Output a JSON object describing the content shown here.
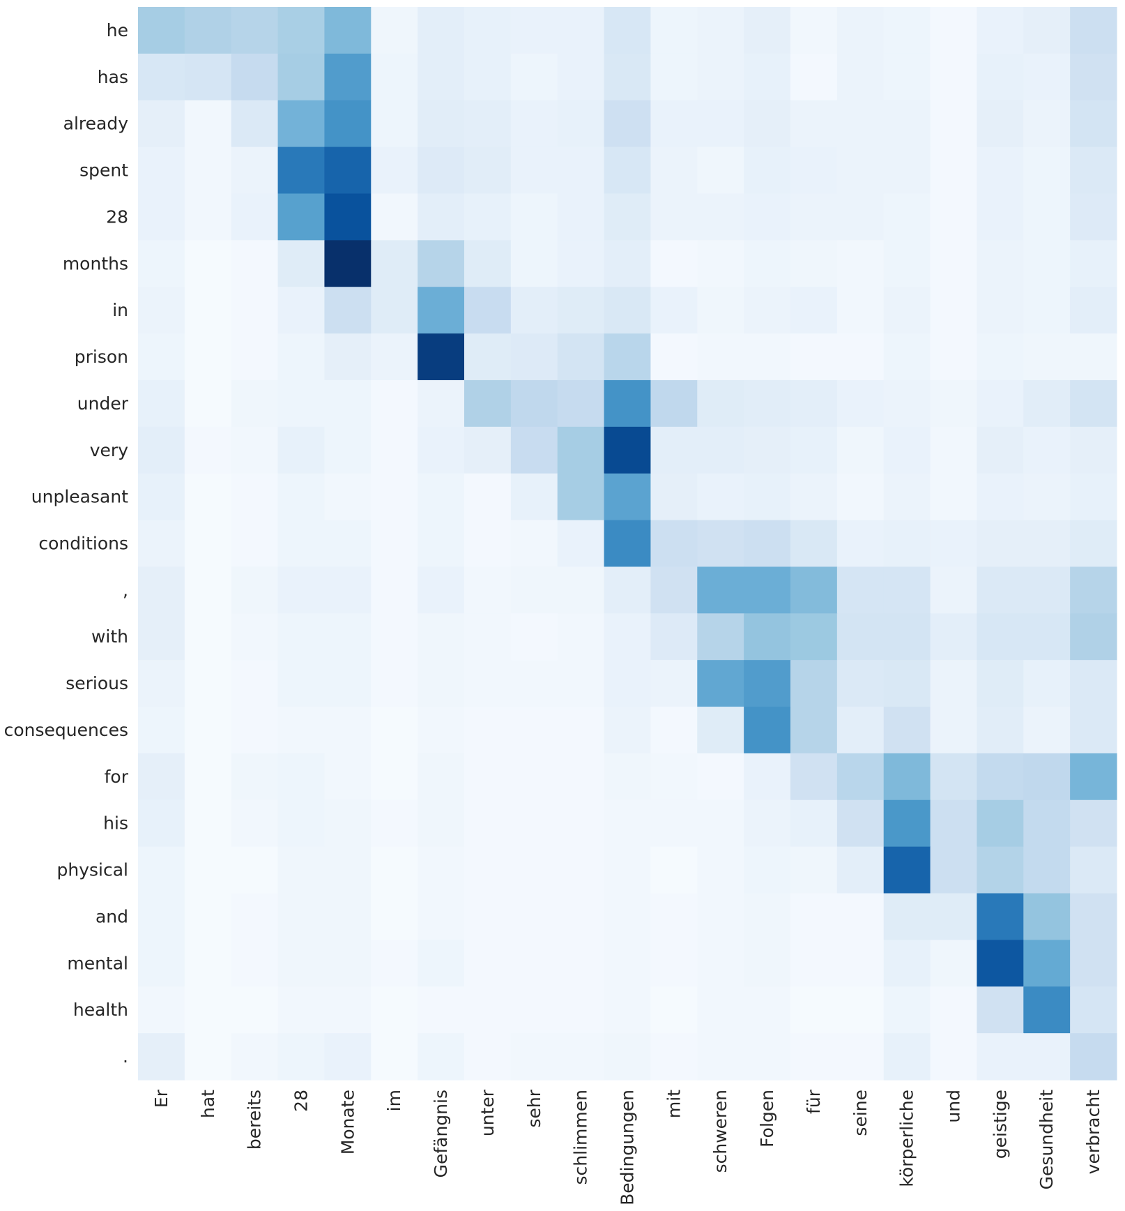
{
  "chart_data": {
    "type": "heatmap",
    "title": "",
    "xlabel": "",
    "ylabel": "",
    "colormap": "Blues",
    "value_range": [
      0,
      1
    ],
    "x_categories": [
      "Er",
      "hat",
      "bereits",
      "28",
      "Monate",
      "im",
      "Gefängnis",
      "unter",
      "sehr",
      "schlimmen",
      "Bedingungen",
      "mit",
      "schweren",
      "Folgen",
      "für",
      "seine",
      "körperliche",
      "und",
      "geistige",
      "Gesundheit",
      "verbracht"
    ],
    "y_categories": [
      "he",
      "has",
      "already",
      "spent",
      "28",
      "months",
      "in",
      "prison",
      "under",
      "very",
      "unpleasant",
      "conditions",
      ",",
      "with",
      "serious",
      "consequences",
      "for",
      "his",
      "physical",
      "and",
      "mental",
      "health",
      "."
    ],
    "values": [
      [
        0.35,
        0.32,
        0.3,
        0.34,
        0.45,
        0.04,
        0.1,
        0.08,
        0.07,
        0.07,
        0.16,
        0.05,
        0.06,
        0.09,
        0.03,
        0.06,
        0.05,
        0.02,
        0.07,
        0.09,
        0.22
      ],
      [
        0.16,
        0.17,
        0.25,
        0.35,
        0.58,
        0.05,
        0.1,
        0.08,
        0.05,
        0.07,
        0.15,
        0.05,
        0.06,
        0.08,
        0.02,
        0.06,
        0.05,
        0.02,
        0.08,
        0.07,
        0.2
      ],
      [
        0.09,
        0.03,
        0.14,
        0.48,
        0.62,
        0.05,
        0.11,
        0.1,
        0.07,
        0.08,
        0.21,
        0.07,
        0.07,
        0.09,
        0.06,
        0.06,
        0.06,
        0.02,
        0.09,
        0.06,
        0.18
      ],
      [
        0.07,
        0.03,
        0.06,
        0.72,
        0.8,
        0.07,
        0.13,
        0.11,
        0.07,
        0.07,
        0.16,
        0.06,
        0.04,
        0.08,
        0.07,
        0.06,
        0.06,
        0.02,
        0.07,
        0.05,
        0.14
      ],
      [
        0.07,
        0.03,
        0.07,
        0.56,
        0.87,
        0.03,
        0.1,
        0.08,
        0.05,
        0.07,
        0.12,
        0.06,
        0.06,
        0.07,
        0.06,
        0.06,
        0.05,
        0.02,
        0.07,
        0.05,
        0.13
      ],
      [
        0.05,
        0.01,
        0.02,
        0.12,
        1.0,
        0.12,
        0.3,
        0.12,
        0.05,
        0.07,
        0.1,
        0.02,
        0.03,
        0.05,
        0.04,
        0.03,
        0.05,
        0.02,
        0.06,
        0.05,
        0.08
      ],
      [
        0.06,
        0.01,
        0.02,
        0.07,
        0.22,
        0.12,
        0.5,
        0.24,
        0.1,
        0.12,
        0.15,
        0.07,
        0.04,
        0.06,
        0.07,
        0.03,
        0.06,
        0.02,
        0.06,
        0.05,
        0.1
      ],
      [
        0.05,
        0.01,
        0.02,
        0.05,
        0.09,
        0.06,
        0.95,
        0.12,
        0.13,
        0.18,
        0.29,
        0.02,
        0.03,
        0.03,
        0.02,
        0.02,
        0.05,
        0.02,
        0.05,
        0.04,
        0.04
      ],
      [
        0.08,
        0.01,
        0.04,
        0.05,
        0.05,
        0.02,
        0.06,
        0.32,
        0.27,
        0.25,
        0.62,
        0.27,
        0.12,
        0.11,
        0.1,
        0.07,
        0.06,
        0.04,
        0.07,
        0.11,
        0.18
      ],
      [
        0.1,
        0.02,
        0.03,
        0.08,
        0.05,
        0.02,
        0.07,
        0.09,
        0.24,
        0.35,
        0.9,
        0.1,
        0.1,
        0.09,
        0.08,
        0.04,
        0.07,
        0.03,
        0.09,
        0.07,
        0.09
      ],
      [
        0.08,
        0.01,
        0.02,
        0.05,
        0.03,
        0.02,
        0.05,
        0.02,
        0.08,
        0.35,
        0.55,
        0.09,
        0.07,
        0.08,
        0.06,
        0.03,
        0.06,
        0.03,
        0.07,
        0.06,
        0.08
      ],
      [
        0.06,
        0.01,
        0.02,
        0.05,
        0.05,
        0.02,
        0.05,
        0.02,
        0.03,
        0.07,
        0.65,
        0.22,
        0.2,
        0.22,
        0.15,
        0.07,
        0.08,
        0.07,
        0.09,
        0.09,
        0.12
      ],
      [
        0.09,
        0.01,
        0.04,
        0.07,
        0.07,
        0.02,
        0.07,
        0.03,
        0.04,
        0.04,
        0.1,
        0.2,
        0.5,
        0.5,
        0.44,
        0.17,
        0.17,
        0.06,
        0.14,
        0.14,
        0.3
      ],
      [
        0.09,
        0.01,
        0.03,
        0.05,
        0.05,
        0.02,
        0.04,
        0.03,
        0.02,
        0.03,
        0.07,
        0.13,
        0.3,
        0.4,
        0.38,
        0.18,
        0.18,
        0.1,
        0.16,
        0.16,
        0.32
      ],
      [
        0.06,
        0.01,
        0.02,
        0.05,
        0.05,
        0.02,
        0.04,
        0.03,
        0.03,
        0.03,
        0.07,
        0.06,
        0.53,
        0.58,
        0.3,
        0.14,
        0.15,
        0.06,
        0.12,
        0.08,
        0.14
      ],
      [
        0.05,
        0.01,
        0.02,
        0.03,
        0.03,
        0.01,
        0.03,
        0.02,
        0.02,
        0.02,
        0.06,
        0.02,
        0.12,
        0.62,
        0.3,
        0.1,
        0.2,
        0.06,
        0.11,
        0.06,
        0.14
      ],
      [
        0.09,
        0.01,
        0.04,
        0.05,
        0.03,
        0.01,
        0.04,
        0.02,
        0.02,
        0.02,
        0.04,
        0.03,
        0.02,
        0.07,
        0.2,
        0.29,
        0.45,
        0.18,
        0.26,
        0.27,
        0.47
      ],
      [
        0.08,
        0.01,
        0.03,
        0.05,
        0.04,
        0.02,
        0.04,
        0.02,
        0.02,
        0.02,
        0.03,
        0.03,
        0.03,
        0.06,
        0.08,
        0.2,
        0.6,
        0.22,
        0.35,
        0.26,
        0.2
      ],
      [
        0.05,
        0.01,
        0.01,
        0.04,
        0.04,
        0.01,
        0.03,
        0.02,
        0.02,
        0.02,
        0.03,
        0.01,
        0.03,
        0.05,
        0.04,
        0.1,
        0.8,
        0.22,
        0.31,
        0.26,
        0.14
      ],
      [
        0.05,
        0.01,
        0.02,
        0.04,
        0.04,
        0.01,
        0.03,
        0.02,
        0.02,
        0.02,
        0.03,
        0.02,
        0.03,
        0.04,
        0.02,
        0.02,
        0.12,
        0.12,
        0.72,
        0.4,
        0.2
      ],
      [
        0.05,
        0.01,
        0.02,
        0.04,
        0.04,
        0.02,
        0.05,
        0.02,
        0.02,
        0.02,
        0.03,
        0.02,
        0.03,
        0.04,
        0.02,
        0.02,
        0.08,
        0.04,
        0.85,
        0.52,
        0.2
      ],
      [
        0.03,
        0.01,
        0.01,
        0.03,
        0.03,
        0.01,
        0.02,
        0.02,
        0.02,
        0.02,
        0.03,
        0.01,
        0.03,
        0.03,
        0.01,
        0.01,
        0.05,
        0.02,
        0.2,
        0.65,
        0.17
      ],
      [
        0.09,
        0.01,
        0.03,
        0.05,
        0.07,
        0.01,
        0.05,
        0.02,
        0.03,
        0.03,
        0.04,
        0.02,
        0.03,
        0.03,
        0.02,
        0.02,
        0.08,
        0.02,
        0.07,
        0.07,
        0.25
      ]
    ]
  }
}
